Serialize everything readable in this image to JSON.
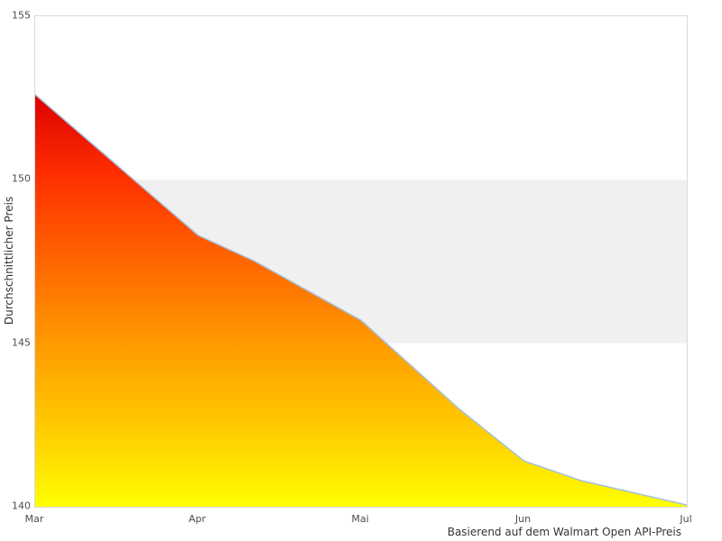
{
  "chart": {
    "y_axis_title": "Durchschnittlicher Preis",
    "caption": "Basierend auf dem Walmart Open API-Preis"
  },
  "chart_data": {
    "type": "area",
    "title": "",
    "xlabel": "",
    "ylabel": "Durchschnittlicher Preis",
    "x_tick_labels": [
      "Mar",
      "Apr",
      "Mai",
      "Jun",
      "Jul"
    ],
    "y_ticks": [
      140,
      145,
      150,
      155
    ],
    "ylim": [
      140,
      155
    ],
    "grid": "band",
    "band": {
      "from": 145,
      "to": 150,
      "color": "#f0f0f0"
    },
    "legend": "none",
    "series": [
      {
        "name": "Durchschnittlicher Preis",
        "points": [
          [
            0,
            152.6
          ],
          [
            1,
            148.3
          ],
          [
            1.35,
            147.5
          ],
          [
            2,
            145.7
          ],
          [
            2.6,
            143.0
          ],
          [
            3,
            141.4
          ],
          [
            3.35,
            140.8
          ],
          [
            4,
            140.05
          ]
        ]
      }
    ],
    "line_color": "#a3c1dd",
    "fill_gradient": {
      "direction": "top-to-bottom",
      "stops": [
        {
          "offset": 0.0,
          "color": "#dd0000"
        },
        {
          "offset": 0.2,
          "color": "#ff3000"
        },
        {
          "offset": 0.6,
          "color": "#ff9900"
        },
        {
          "offset": 0.85,
          "color": "#ffd500"
        },
        {
          "offset": 1.0,
          "color": "#ffff00"
        }
      ]
    }
  }
}
